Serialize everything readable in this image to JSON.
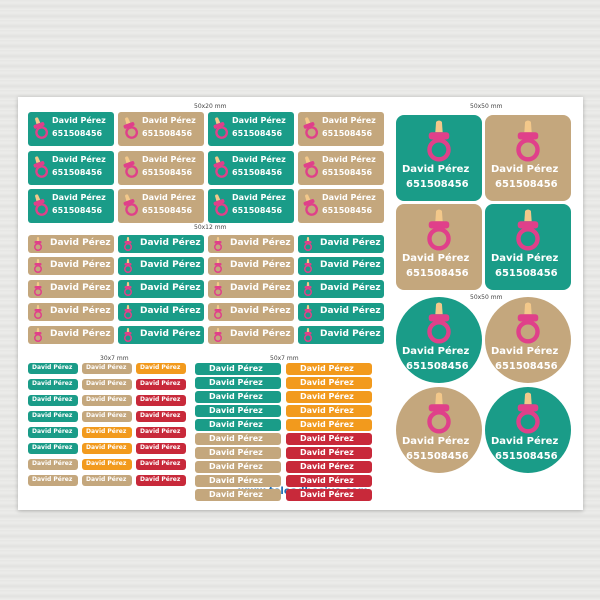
{
  "sizes": {
    "g1": "50x20 mm",
    "g2": "50x12 mm",
    "g3": "30x7 mm",
    "g4": "50x7 mm",
    "g5": "50x50 mm",
    "g6": "50x50 mm"
  },
  "name": "David Pérez",
  "phone": "651508456",
  "website": "www.teleadhesivo.com",
  "colors": {
    "teal": "#1a9c88",
    "tan": "#c4a77d",
    "orange": "#f29a1d",
    "red": "#c8293a",
    "pacifier": "#e0408a",
    "nipple": "#f3c88a"
  }
}
